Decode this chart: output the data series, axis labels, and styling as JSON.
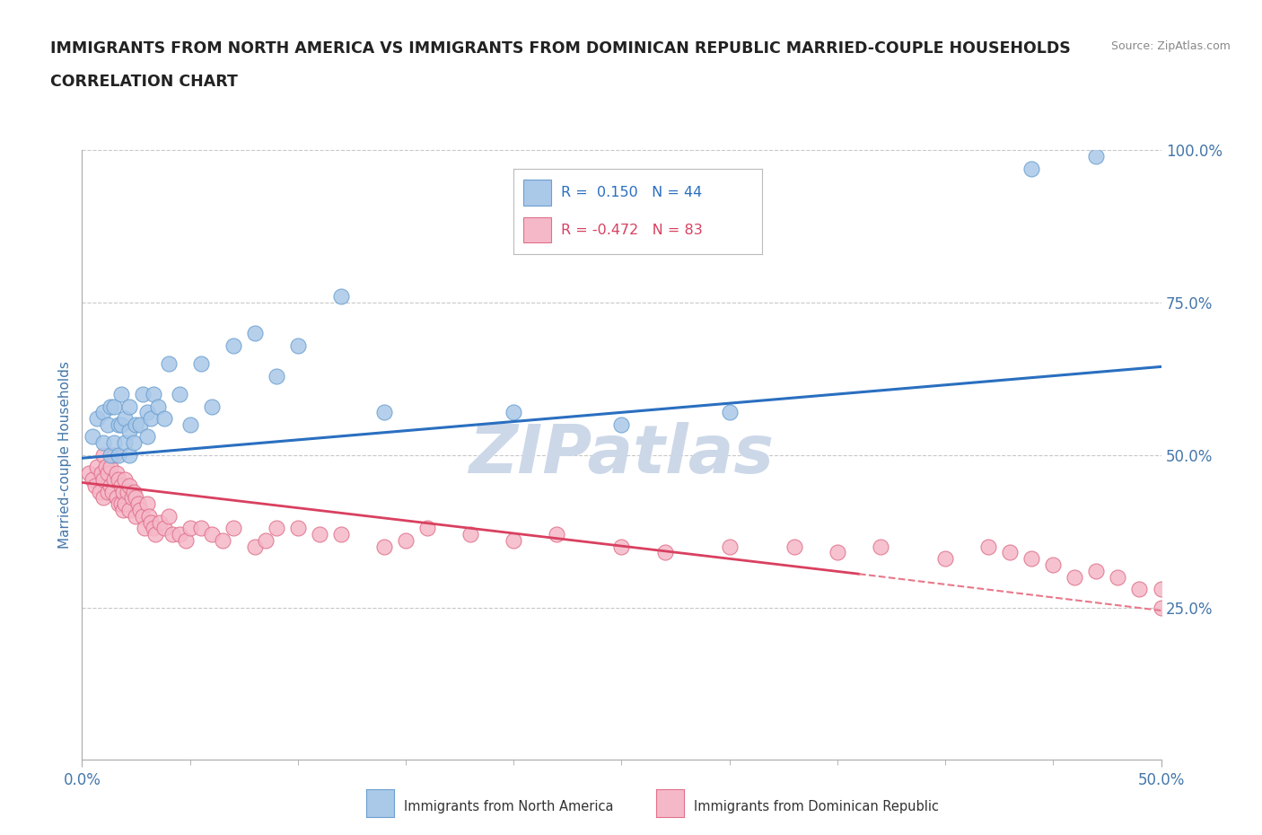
{
  "title_line1": "IMMIGRANTS FROM NORTH AMERICA VS IMMIGRANTS FROM DOMINICAN REPUBLIC MARRIED-COUPLE HOUSEHOLDS",
  "title_line2": "CORRELATION CHART",
  "source_text": "Source: ZipAtlas.com",
  "ylabel": "Married-couple Households",
  "xlim": [
    0,
    0.5
  ],
  "ylim": [
    0,
    1.0
  ],
  "ytick_labels": [
    "25.0%",
    "50.0%",
    "75.0%",
    "100.0%"
  ],
  "ytick_positions": [
    0.25,
    0.5,
    0.75,
    1.0
  ],
  "blue_scatter": {
    "color": "#aac8e8",
    "edge_color": "#6ca0d0",
    "x": [
      0.005,
      0.007,
      0.01,
      0.01,
      0.012,
      0.013,
      0.013,
      0.015,
      0.015,
      0.017,
      0.017,
      0.018,
      0.018,
      0.02,
      0.02,
      0.022,
      0.022,
      0.022,
      0.024,
      0.025,
      0.027,
      0.028,
      0.03,
      0.03,
      0.032,
      0.033,
      0.035,
      0.038,
      0.04,
      0.045,
      0.05,
      0.055,
      0.06,
      0.07,
      0.08,
      0.09,
      0.1,
      0.12,
      0.14,
      0.2,
      0.25,
      0.3,
      0.44,
      0.47
    ],
    "y": [
      0.53,
      0.56,
      0.52,
      0.57,
      0.55,
      0.5,
      0.58,
      0.52,
      0.58,
      0.5,
      0.55,
      0.55,
      0.6,
      0.52,
      0.56,
      0.5,
      0.54,
      0.58,
      0.52,
      0.55,
      0.55,
      0.6,
      0.53,
      0.57,
      0.56,
      0.6,
      0.58,
      0.56,
      0.65,
      0.6,
      0.55,
      0.65,
      0.58,
      0.68,
      0.7,
      0.63,
      0.68,
      0.76,
      0.57,
      0.57,
      0.55,
      0.57,
      0.97,
      0.99
    ]
  },
  "pink_scatter": {
    "color": "#f5b8c8",
    "edge_color": "#e0708a",
    "x": [
      0.003,
      0.005,
      0.006,
      0.007,
      0.008,
      0.009,
      0.01,
      0.01,
      0.01,
      0.011,
      0.012,
      0.012,
      0.013,
      0.013,
      0.014,
      0.015,
      0.015,
      0.016,
      0.016,
      0.017,
      0.017,
      0.018,
      0.018,
      0.019,
      0.019,
      0.02,
      0.02,
      0.021,
      0.022,
      0.022,
      0.023,
      0.024,
      0.025,
      0.025,
      0.026,
      0.027,
      0.028,
      0.029,
      0.03,
      0.031,
      0.032,
      0.033,
      0.034,
      0.036,
      0.038,
      0.04,
      0.042,
      0.045,
      0.048,
      0.05,
      0.055,
      0.06,
      0.065,
      0.07,
      0.08,
      0.085,
      0.09,
      0.1,
      0.11,
      0.12,
      0.14,
      0.15,
      0.16,
      0.18,
      0.2,
      0.22,
      0.25,
      0.27,
      0.3,
      0.33,
      0.35,
      0.37,
      0.4,
      0.42,
      0.43,
      0.44,
      0.45,
      0.46,
      0.47,
      0.48,
      0.49,
      0.5,
      0.5
    ],
    "y": [
      0.47,
      0.46,
      0.45,
      0.48,
      0.44,
      0.47,
      0.5,
      0.46,
      0.43,
      0.48,
      0.47,
      0.44,
      0.48,
      0.45,
      0.44,
      0.5,
      0.46,
      0.47,
      0.43,
      0.46,
      0.42,
      0.45,
      0.42,
      0.44,
      0.41,
      0.46,
      0.42,
      0.44,
      0.45,
      0.41,
      0.43,
      0.44,
      0.43,
      0.4,
      0.42,
      0.41,
      0.4,
      0.38,
      0.42,
      0.4,
      0.39,
      0.38,
      0.37,
      0.39,
      0.38,
      0.4,
      0.37,
      0.37,
      0.36,
      0.38,
      0.38,
      0.37,
      0.36,
      0.38,
      0.35,
      0.36,
      0.38,
      0.38,
      0.37,
      0.37,
      0.35,
      0.36,
      0.38,
      0.37,
      0.36,
      0.37,
      0.35,
      0.34,
      0.35,
      0.35,
      0.34,
      0.35,
      0.33,
      0.35,
      0.34,
      0.33,
      0.32,
      0.3,
      0.31,
      0.3,
      0.28,
      0.28,
      0.25
    ]
  },
  "blue_trend": {
    "x": [
      0.0,
      0.5
    ],
    "y": [
      0.495,
      0.645
    ],
    "color": "#2a6fc0",
    "linewidth": 2.2
  },
  "pink_trend_solid": {
    "x": [
      0.0,
      0.36
    ],
    "y": [
      0.455,
      0.305
    ],
    "color": "#d94060",
    "linewidth": 2.0
  },
  "pink_trend_dashed": {
    "x": [
      0.36,
      0.5
    ],
    "y": [
      0.305,
      0.245
    ],
    "color": "#e8788a",
    "linewidth": 1.5,
    "linestyle": "--"
  },
  "watermark": "ZIPatlas",
  "watermark_color": "#ccd8e8",
  "grid_color": "#c8c8c8",
  "title_color": "#222222",
  "axis_label_color": "#4477aa",
  "tick_color": "#4477aa",
  "background_color": "#ffffff",
  "legend_blue_label": "R =  0.150   N = 44",
  "legend_pink_label": "R = -0.472   N = 83",
  "legend_blue_color": "#2a6fc0",
  "legend_pink_color": "#d94060",
  "bottom_label_blue": "Immigrants from North America",
  "bottom_label_pink": "Immigrants from Dominican Republic"
}
